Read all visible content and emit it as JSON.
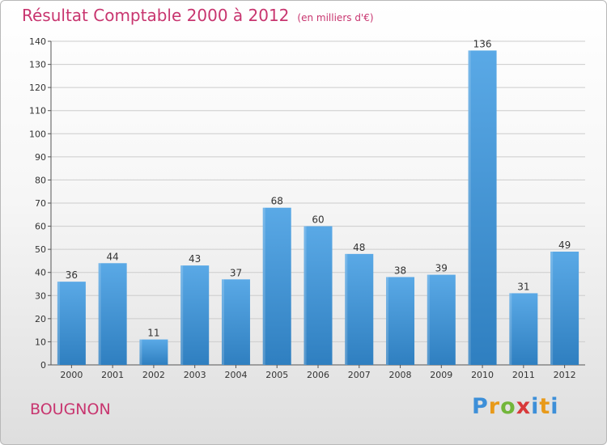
{
  "header": {
    "title": "Résultat Comptable 2000 à 2012",
    "unit": "(en milliers d'€)"
  },
  "footer": {
    "town": "BOUGNON",
    "logo": "Proxiti"
  },
  "chart_data": {
    "type": "bar",
    "title": "Résultat Comptable 2000 à 2012",
    "subtitle": "(en milliers d'€)",
    "xlabel": "",
    "ylabel": "",
    "categories": [
      "2000",
      "2001",
      "2002",
      "2003",
      "2004",
      "2005",
      "2006",
      "2007",
      "2008",
      "2009",
      "2010",
      "2011",
      "2012"
    ],
    "values": [
      36,
      44,
      11,
      43,
      37,
      68,
      60,
      48,
      38,
      39,
      136,
      31,
      49
    ],
    "ylim": [
      0,
      140
    ],
    "yticks": [
      0,
      10,
      20,
      30,
      40,
      50,
      60,
      70,
      80,
      90,
      100,
      110,
      120,
      130,
      140
    ],
    "grid": true,
    "legend": "none",
    "colors": {
      "bar_top": "#5aa9e6",
      "bar_bottom": "#2f7fc0",
      "grid": "#cccccc",
      "text": "#333333"
    }
  }
}
